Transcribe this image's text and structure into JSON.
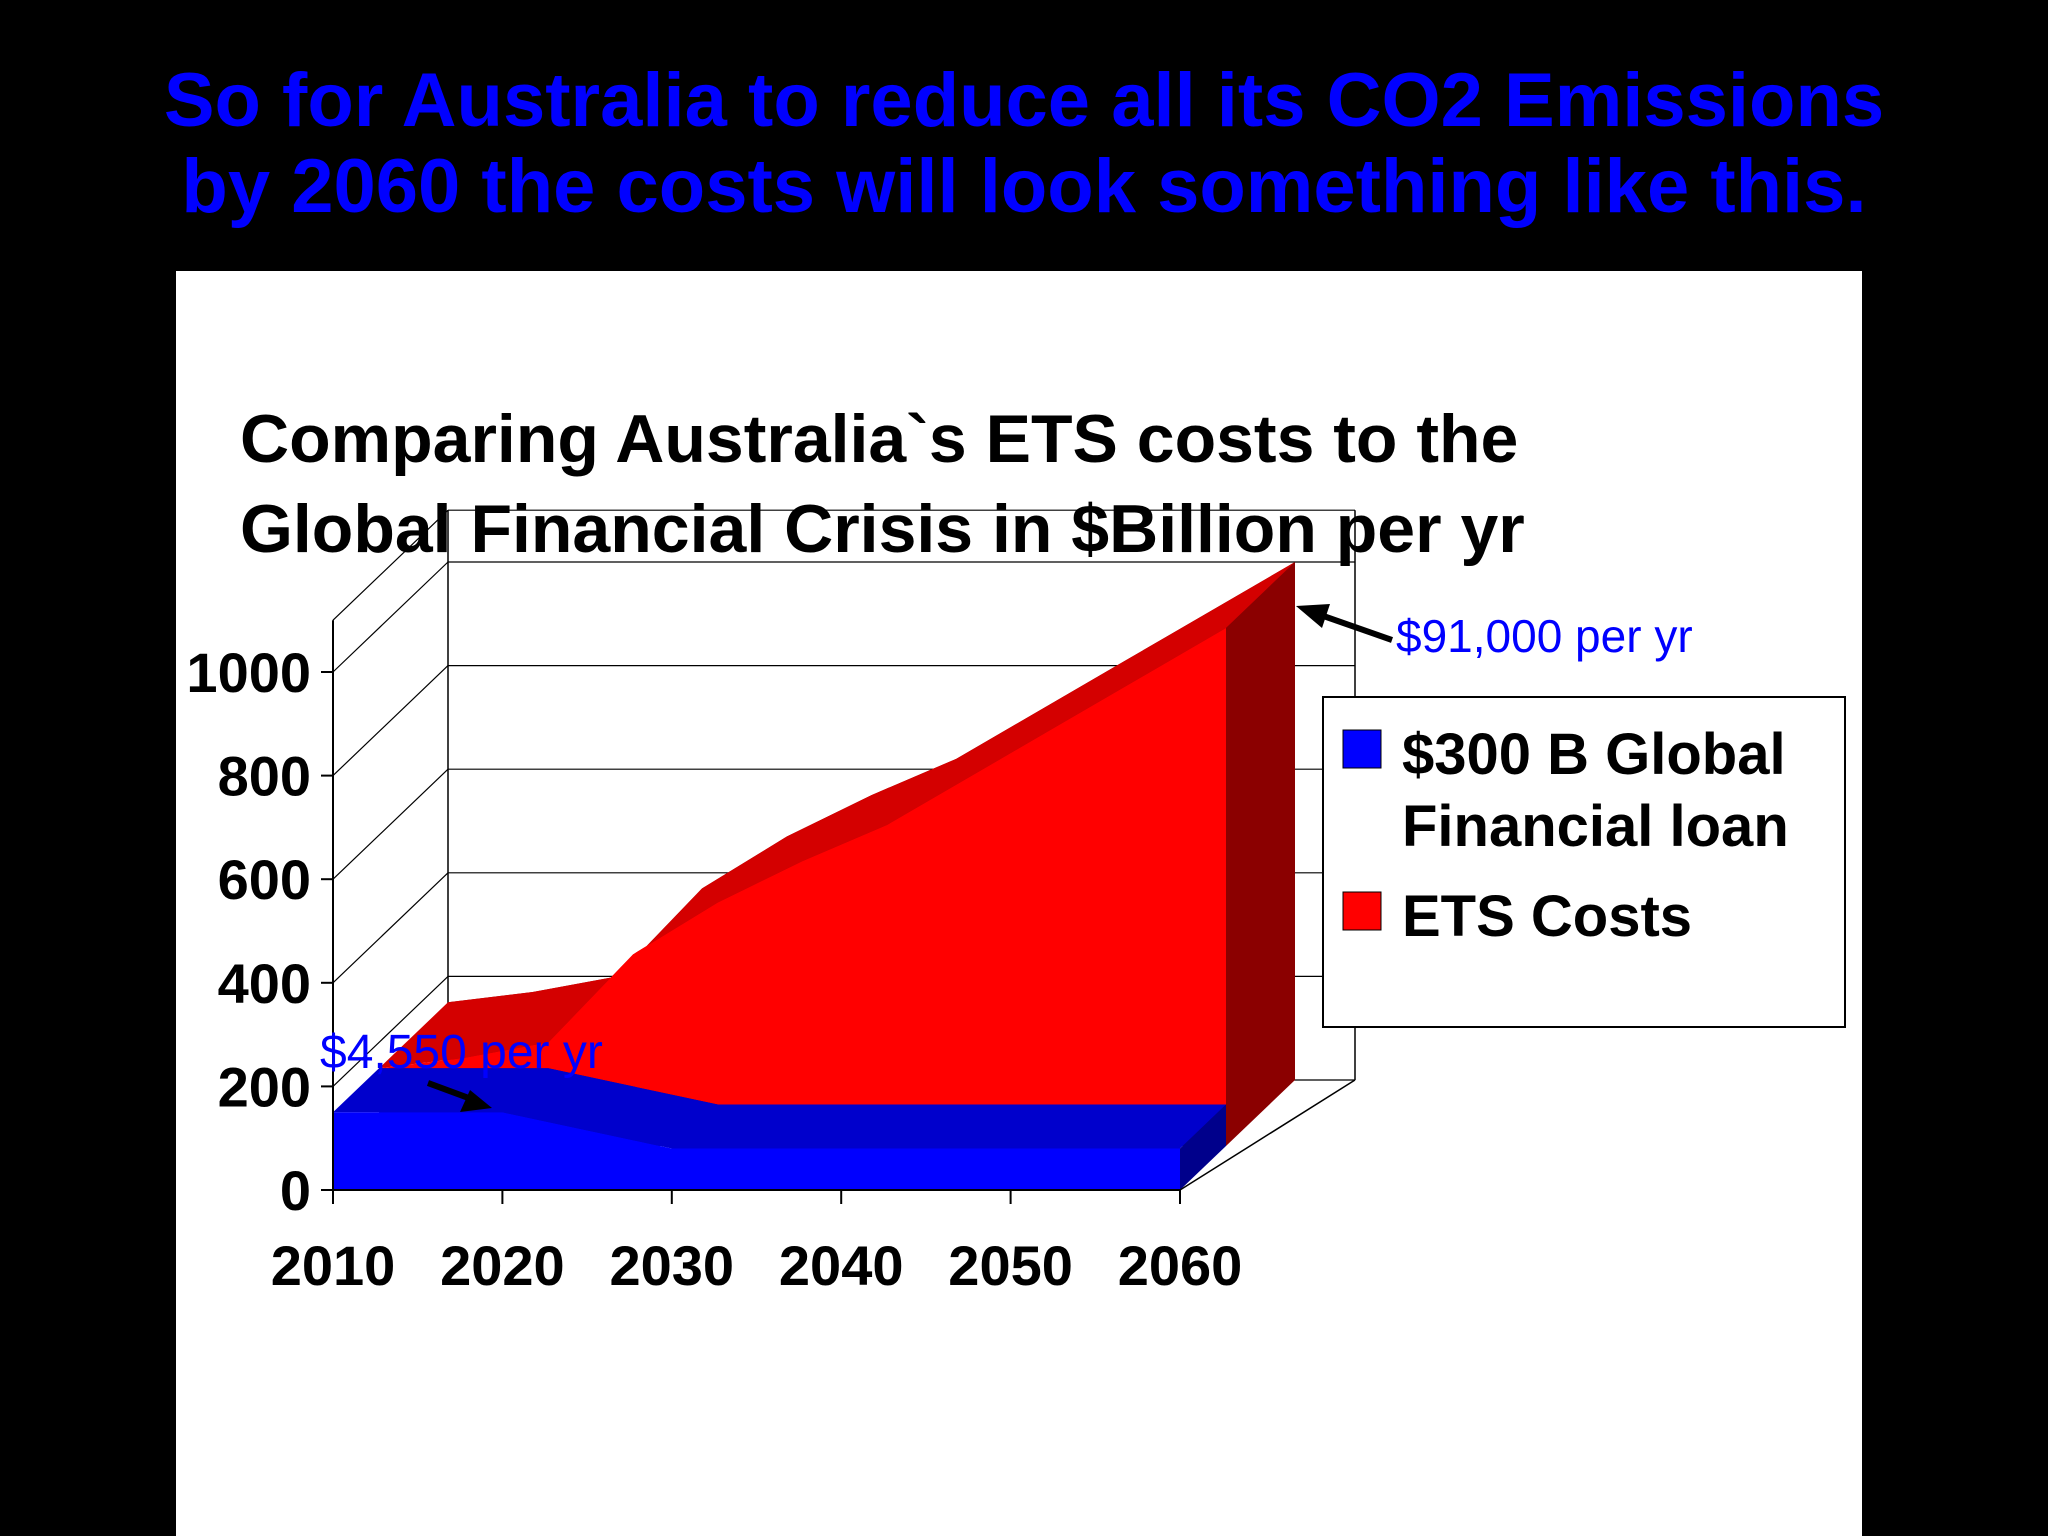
{
  "slide": {
    "title_line1": "So for Australia to reduce all its CO2 Emissions",
    "title_line2": "by 2060 the costs will look something like this."
  },
  "chart_data": {
    "type": "area",
    "title_lines": [
      "Comparing Australia`s ETS costs to the",
      "Global Financial Crisis in $Billion per yr"
    ],
    "x": [
      2010,
      2020,
      2030,
      2040,
      2050,
      2060
    ],
    "x_tick_labels": [
      "2010",
      "2020",
      "2030",
      "2040",
      "2050",
      "2060"
    ],
    "y_tick_labels": [
      "0",
      "200",
      "400",
      "600",
      "800",
      "1000"
    ],
    "ylim": [
      0,
      1000
    ],
    "three_d": true,
    "series": [
      {
        "name": "$300 B Global Financial loan",
        "color": "#0000ff",
        "points": [
          [
            2010,
            150
          ],
          [
            2020,
            150
          ],
          [
            2030,
            80
          ],
          [
            2040,
            80
          ],
          [
            2050,
            80
          ],
          [
            2060,
            80
          ]
        ]
      },
      {
        "name": "ETS Costs",
        "color": "#ff0000",
        "points": [
          [
            2010,
            150
          ],
          [
            2015,
            170
          ],
          [
            2020,
            200
          ],
          [
            2025,
            370
          ],
          [
            2030,
            470
          ],
          [
            2035,
            550
          ],
          [
            2040,
            620
          ],
          [
            2050,
            810
          ],
          [
            2060,
            1000
          ]
        ]
      }
    ],
    "legend_position": "right",
    "annotations": [
      {
        "text": "$91,000 per yr",
        "x": 2060,
        "y": 1000
      },
      {
        "text": "$4,550 per yr",
        "x": 2020,
        "y": 160
      }
    ],
    "annotation_color": "#0000ff"
  }
}
